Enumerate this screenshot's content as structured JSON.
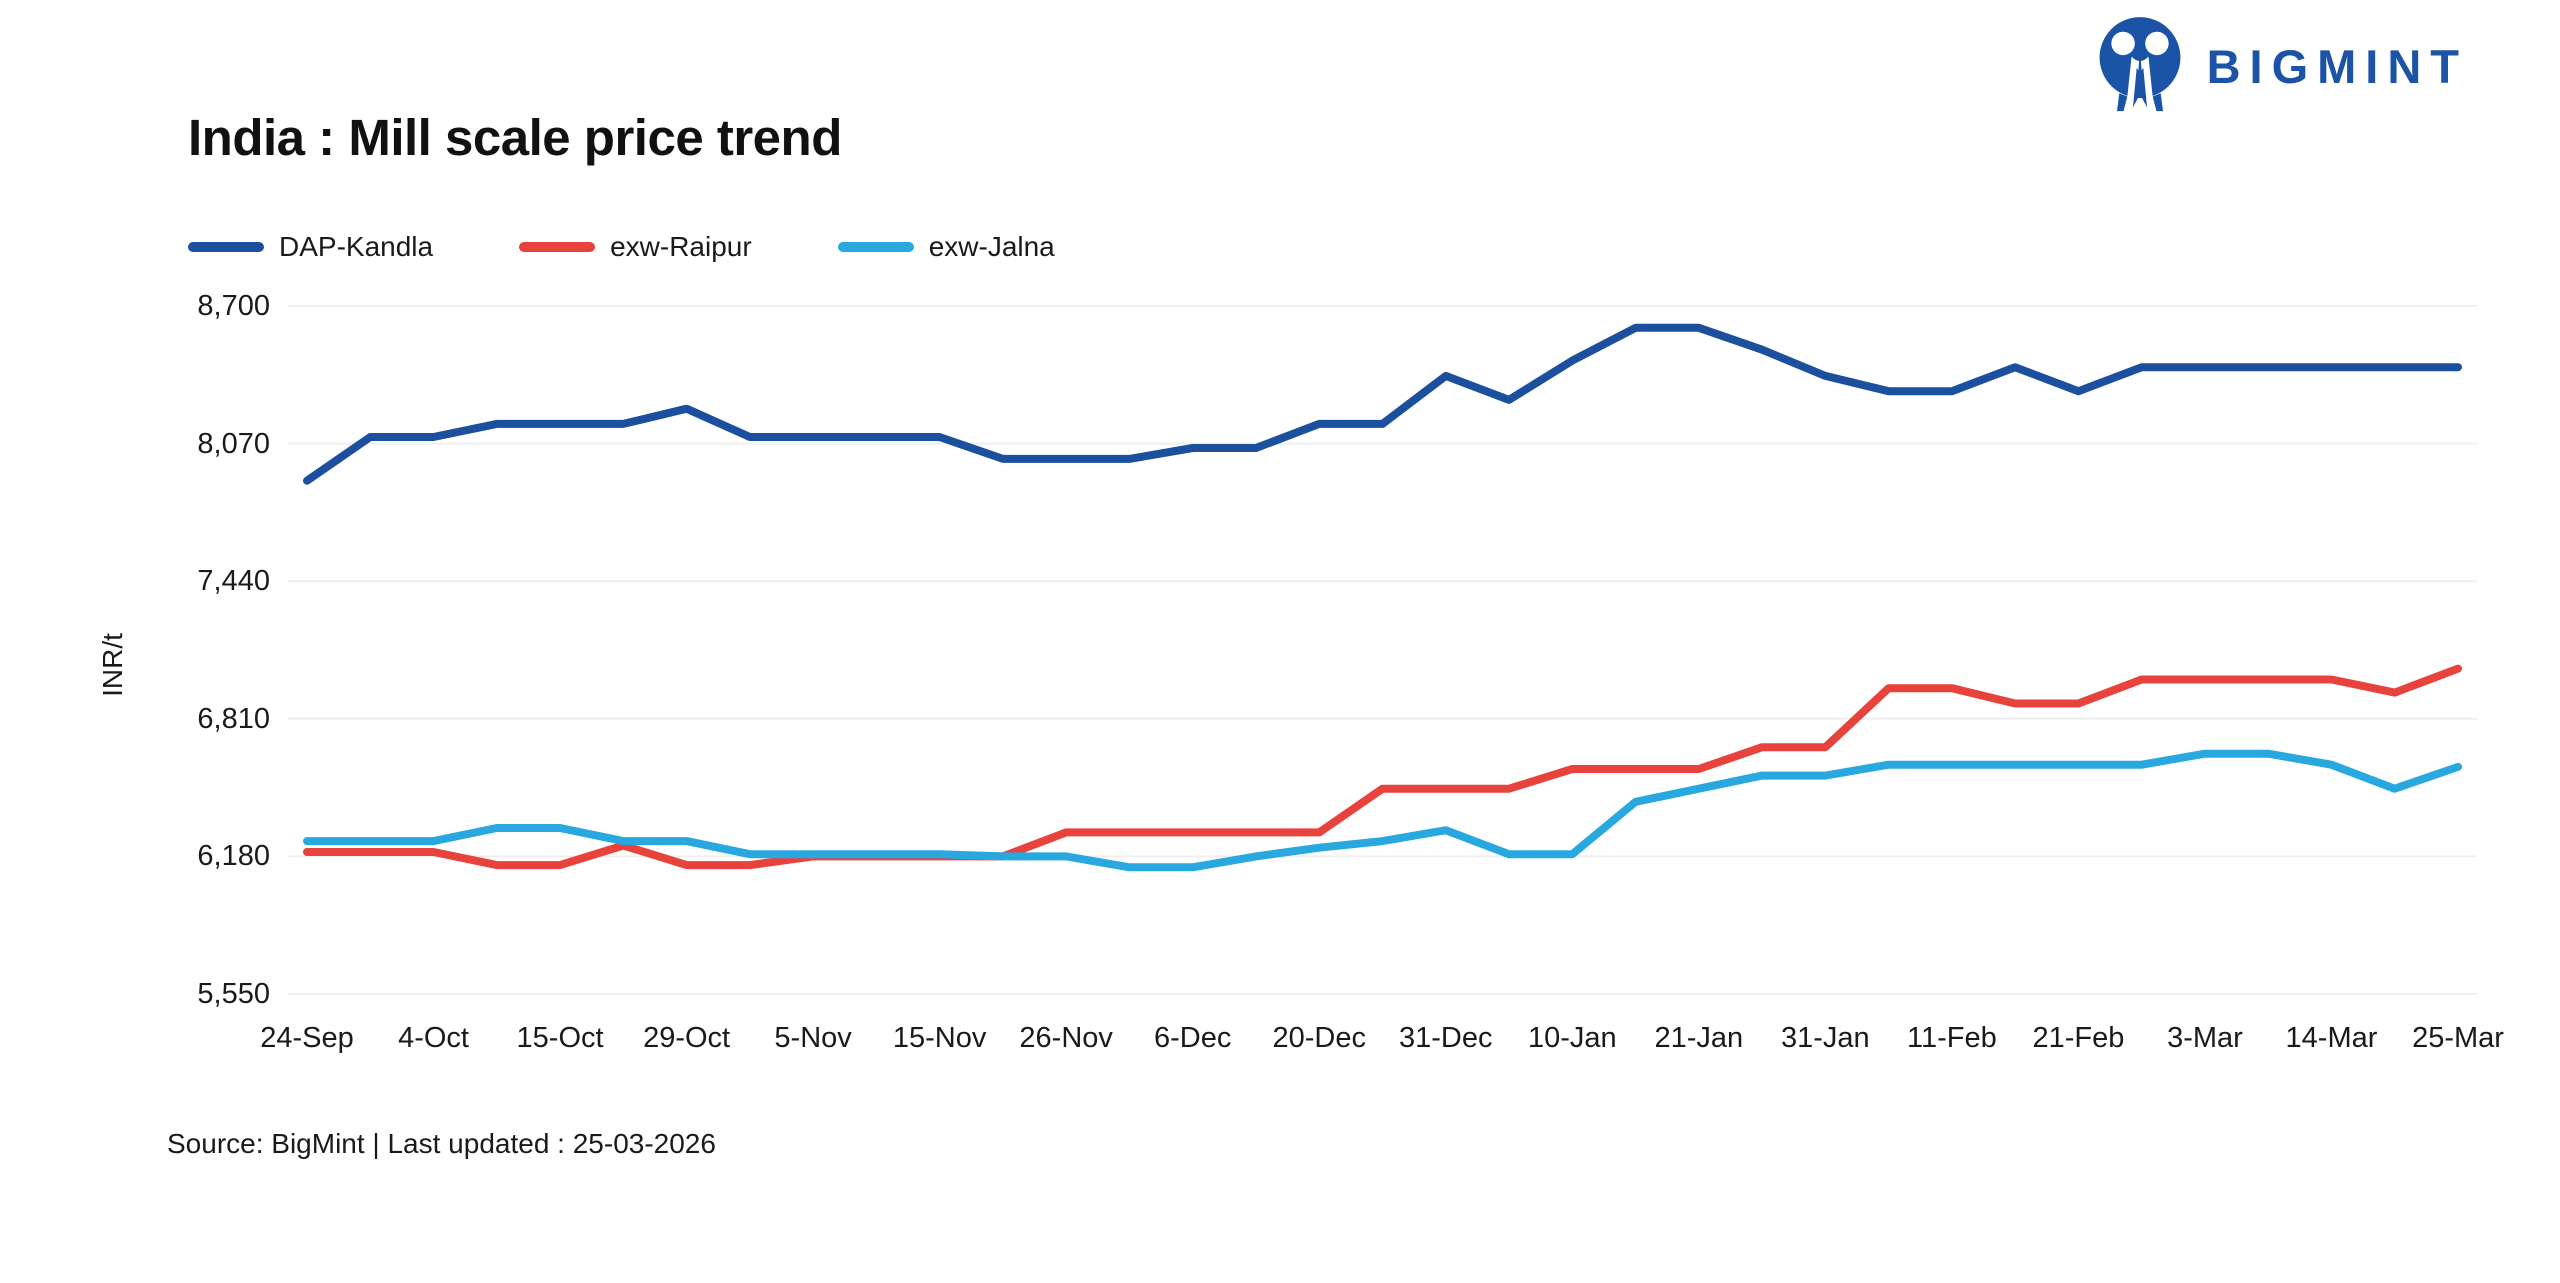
{
  "header": {
    "brand": "BIGMINT"
  },
  "page_title": "India : Mill scale price trend",
  "source_note": "Source: BigMint | Last updated : 25-03-2026",
  "colors": {
    "brand_navy": "#1b53a6",
    "grid": "#efefef",
    "text": "#1a1a1a",
    "background": "#ffffff"
  },
  "chart_data": {
    "type": "line",
    "title": "India : Mill scale price trend",
    "xlabel": "",
    "ylabel": "INR/t",
    "ylim": [
      5550,
      8700
    ],
    "y_ticks": [
      8700,
      8070,
      7440,
      6810,
      6180,
      5550
    ],
    "y_tick_labels": [
      "8,700",
      "8,070",
      "7,440",
      "6,810",
      "6,180",
      "5,550"
    ],
    "x_tick_labels": [
      "24-Sep",
      "4-Oct",
      "15-Oct",
      "29-Oct",
      "5-Nov",
      "15-Nov",
      "26-Nov",
      "6-Dec",
      "20-Dec",
      "31-Dec",
      "10-Jan",
      "21-Jan",
      "31-Jan",
      "11-Feb",
      "21-Feb",
      "3-Mar",
      "14-Mar",
      "25-Mar"
    ],
    "x_tick_point_indices": [
      0,
      2,
      4,
      6,
      8,
      10,
      12,
      14,
      16,
      18,
      20,
      22,
      24,
      26,
      28,
      30,
      32,
      34
    ],
    "points_per_series": 35,
    "grid": "horizontal-only",
    "legend_position": "top-left",
    "series": [
      {
        "name": "DAP-Kandla",
        "color": "#1c4f9d",
        "values": [
          7900,
          8100,
          8100,
          8160,
          8160,
          8160,
          8230,
          8100,
          8100,
          8100,
          8100,
          8000,
          8000,
          8000,
          8050,
          8050,
          8160,
          8160,
          8380,
          8270,
          8450,
          8600,
          8600,
          8500,
          8380,
          8310,
          8310,
          8420,
          8310,
          8420,
          8420,
          8420,
          8420,
          8420,
          8420
        ]
      },
      {
        "name": "exw-Raipur",
        "color": "#e8423d",
        "values": [
          6200,
          6200,
          6200,
          6140,
          6140,
          6230,
          6140,
          6140,
          6180,
          6180,
          6180,
          6180,
          6290,
          6290,
          6290,
          6290,
          6290,
          6490,
          6490,
          6490,
          6580,
          6580,
          6580,
          6680,
          6680,
          6950,
          6950,
          6880,
          6880,
          6990,
          6990,
          6990,
          6990,
          6930,
          7040
        ]
      },
      {
        "name": "exw-Jalna",
        "color": "#29a8e0",
        "values": [
          6250,
          6250,
          6250,
          6310,
          6310,
          6250,
          6250,
          6190,
          6190,
          6190,
          6190,
          6180,
          6180,
          6130,
          6130,
          6180,
          6220,
          6250,
          6300,
          6190,
          6190,
          6430,
          6490,
          6550,
          6550,
          6600,
          6600,
          6600,
          6600,
          6600,
          6650,
          6650,
          6600,
          6490,
          6590
        ]
      }
    ]
  }
}
